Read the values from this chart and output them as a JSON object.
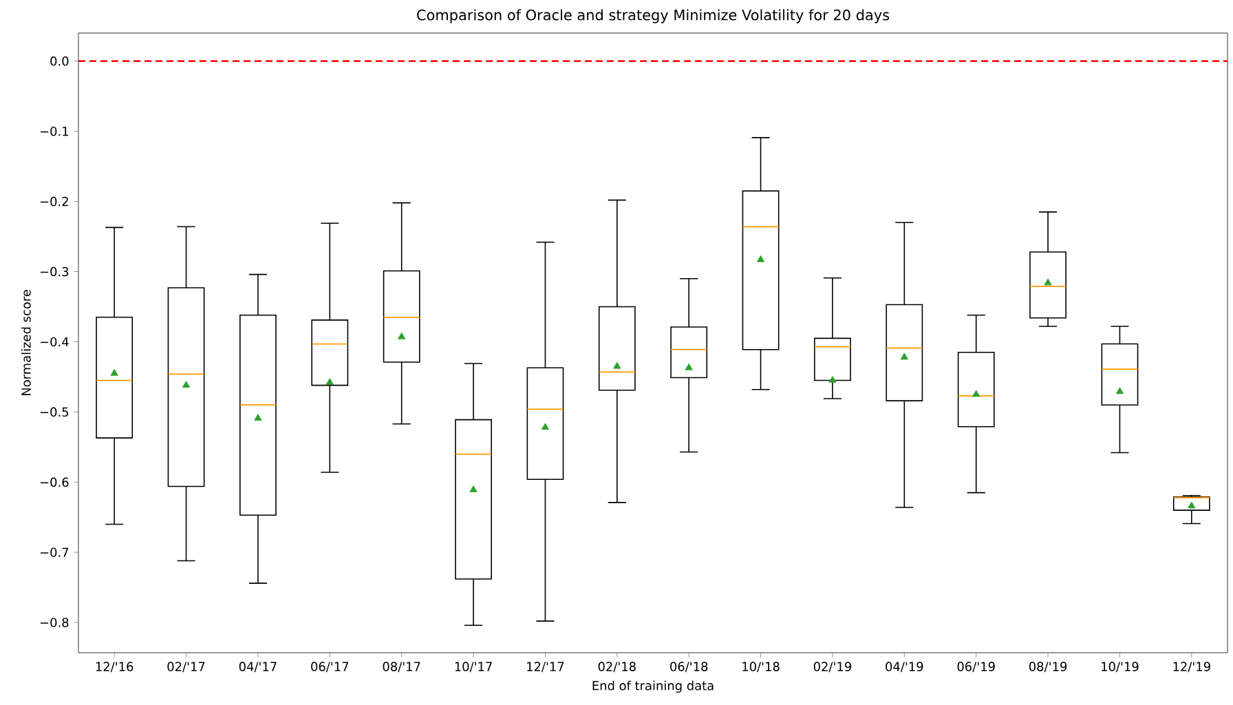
{
  "chart_data": {
    "type": "box",
    "title": "Comparison of Oracle and strategy Minimize Volatility for 20 days",
    "xlabel": "End of training data",
    "ylabel": "Normalized score",
    "categories": [
      "12/'16",
      "02/'17",
      "04/'17",
      "06/'17",
      "08/'17",
      "10/'17",
      "12/'17",
      "02/'18",
      "06/'18",
      "10/'18",
      "02/'19",
      "04/'19",
      "06/'19",
      "08/'19",
      "10/'19",
      "12/'19"
    ],
    "boxes": [
      {
        "low": -0.66,
        "q1": -0.537,
        "median": -0.455,
        "q3": -0.365,
        "high": -0.237,
        "mean": -0.445
      },
      {
        "low": -0.712,
        "q1": -0.606,
        "median": -0.446,
        "q3": -0.323,
        "high": -0.236,
        "mean": -0.462
      },
      {
        "low": -0.744,
        "q1": -0.647,
        "median": -0.49,
        "q3": -0.362,
        "high": -0.304,
        "mean": -0.509
      },
      {
        "low": -0.586,
        "q1": -0.462,
        "median": -0.403,
        "q3": -0.369,
        "high": -0.231,
        "mean": -0.458
      },
      {
        "low": -0.517,
        "q1": -0.429,
        "median": -0.365,
        "q3": -0.299,
        "high": -0.202,
        "mean": -0.393
      },
      {
        "low": -0.804,
        "q1": -0.738,
        "median": -0.56,
        "q3": -0.511,
        "high": -0.431,
        "mean": -0.611
      },
      {
        "low": -0.798,
        "q1": -0.596,
        "median": -0.496,
        "q3": -0.437,
        "high": -0.258,
        "mean": -0.522
      },
      {
        "low": -0.629,
        "q1": -0.469,
        "median": -0.443,
        "q3": -0.35,
        "high": -0.198,
        "mean": -0.435
      },
      {
        "low": -0.557,
        "q1": -0.451,
        "median": -0.411,
        "q3": -0.379,
        "high": -0.31,
        "mean": -0.437
      },
      {
        "low": -0.468,
        "q1": -0.411,
        "median": -0.236,
        "q3": -0.185,
        "high": -0.109,
        "mean": -0.283
      },
      {
        "low": -0.481,
        "q1": -0.455,
        "median": -0.407,
        "q3": -0.395,
        "high": -0.309,
        "mean": -0.455
      },
      {
        "low": -0.636,
        "q1": -0.484,
        "median": -0.409,
        "q3": -0.347,
        "high": -0.23,
        "mean": -0.422
      },
      {
        "low": -0.615,
        "q1": -0.521,
        "median": -0.477,
        "q3": -0.415,
        "high": -0.362,
        "mean": -0.475
      },
      {
        "low": -0.378,
        "q1": -0.366,
        "median": -0.321,
        "q3": -0.272,
        "high": -0.215,
        "mean": -0.316
      },
      {
        "low": -0.558,
        "q1": -0.49,
        "median": -0.439,
        "q3": -0.403,
        "high": -0.378,
        "mean": -0.471
      },
      {
        "low": -0.659,
        "q1": -0.64,
        "median": -0.622,
        "q3": -0.621,
        "high": -0.619,
        "mean": -0.634
      }
    ],
    "ylim": [
      -0.843,
      0.04
    ],
    "yticks": [
      {
        "value": -0.8,
        "label": "−0.8"
      },
      {
        "value": -0.7,
        "label": "−0.7"
      },
      {
        "value": -0.6,
        "label": "−0.6"
      },
      {
        "value": -0.5,
        "label": "−0.5"
      },
      {
        "value": -0.4,
        "label": "−0.4"
      },
      {
        "value": -0.3,
        "label": "−0.3"
      },
      {
        "value": -0.2,
        "label": "−0.2"
      },
      {
        "value": -0.1,
        "label": "−0.1"
      },
      {
        "value": 0.0,
        "label": "0.0"
      }
    ],
    "ref_lines": [
      {
        "axis": "y",
        "value": 0.0,
        "color": "#ff0000",
        "line_style": "dashed"
      }
    ],
    "marker": "triangle"
  }
}
